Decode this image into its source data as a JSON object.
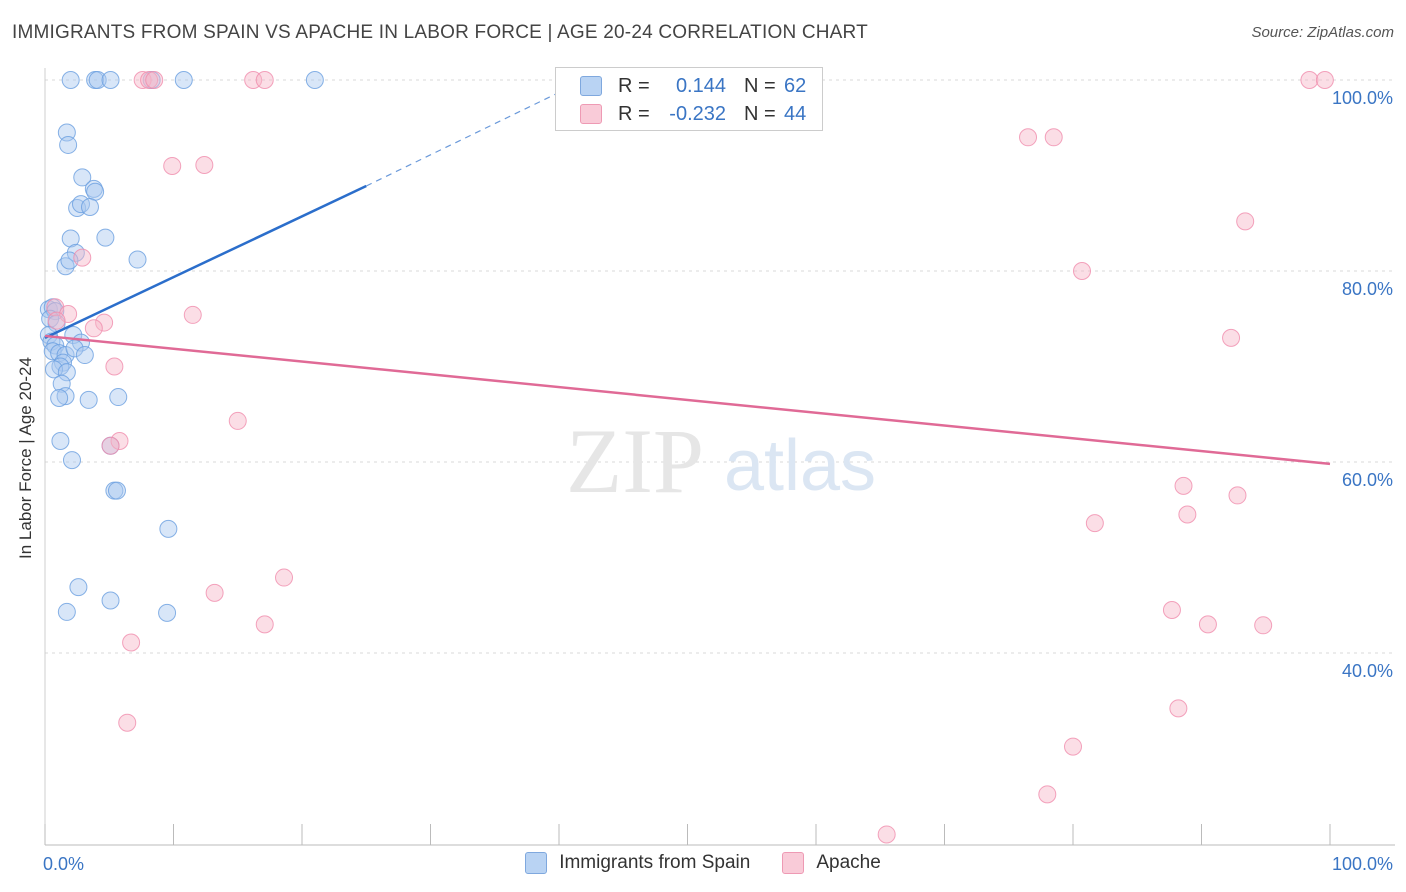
{
  "title": "IMMIGRANTS FROM SPAIN VS APACHE IN LABOR FORCE | AGE 20-24 CORRELATION CHART",
  "source": "Source: ZipAtlas.com",
  "watermark": {
    "zip": "ZIP",
    "atlas": "atlas"
  },
  "legend": {
    "rows": [
      {
        "r_label": "R =",
        "r_value": "0.144",
        "n_label": "N =",
        "n_value": "62",
        "color": "#a8c8f0"
      },
      {
        "r_label": "R =",
        "r_value": "-0.232",
        "n_label": "N =",
        "n_value": "44",
        "color": "#f7b6c8"
      }
    ]
  },
  "bottom_legend": [
    {
      "label": "Immigrants from Spain",
      "color": "#a8c8f0"
    },
    {
      "label": "Apache",
      "color": "#f7b6c8"
    }
  ],
  "chart_data": {
    "type": "scatter",
    "title": "IMMIGRANTS FROM SPAIN VS APACHE IN LABOR FORCE | AGE 20-24 CORRELATION CHART",
    "xlabel": "",
    "ylabel": "In Labor Force | Age 20-24",
    "xlim": [
      0,
      100
    ],
    "ylim": [
      20,
      102
    ],
    "x_tick_labels": [
      "0.0%",
      "100.0%"
    ],
    "y_ticks": [
      40,
      60,
      80,
      100
    ],
    "y_tick_labels": [
      "40.0%",
      "60.0%",
      "80.0%",
      "100.0%"
    ],
    "grid": true,
    "legend_position": "top-center",
    "series": [
      {
        "name": "Immigrants from Spain",
        "color": "#6a9fe0",
        "fill": "#a8c8f0",
        "points": [
          [
            2.0,
            100
          ],
          [
            3.9,
            100
          ],
          [
            4.1,
            100
          ],
          [
            5.1,
            100
          ],
          [
            8.3,
            100
          ],
          [
            10.8,
            100
          ],
          [
            21.0,
            100
          ],
          [
            1.7,
            94.5
          ],
          [
            1.8,
            93.2
          ],
          [
            2.9,
            89.8
          ],
          [
            3.8,
            88.6
          ],
          [
            3.9,
            88.3
          ],
          [
            2.5,
            86.6
          ],
          [
            2.8,
            87.0
          ],
          [
            3.5,
            86.7
          ],
          [
            2.0,
            83.4
          ],
          [
            4.7,
            83.5
          ],
          [
            2.4,
            81.9
          ],
          [
            1.6,
            80.5
          ],
          [
            1.9,
            81.1
          ],
          [
            7.2,
            81.2
          ],
          [
            0.3,
            76.0
          ],
          [
            0.6,
            76.2
          ],
          [
            0.8,
            75.8
          ],
          [
            0.4,
            75.0
          ],
          [
            0.9,
            74.5
          ],
          [
            0.3,
            73.3
          ],
          [
            0.5,
            72.6
          ],
          [
            0.8,
            72.2
          ],
          [
            2.2,
            73.3
          ],
          [
            2.8,
            72.5
          ],
          [
            0.6,
            71.6
          ],
          [
            1.1,
            71.4
          ],
          [
            1.6,
            71.2
          ],
          [
            2.3,
            71.9
          ],
          [
            3.1,
            71.2
          ],
          [
            1.4,
            70.4
          ],
          [
            1.2,
            70.0
          ],
          [
            0.7,
            69.7
          ],
          [
            1.7,
            69.4
          ],
          [
            1.3,
            68.2
          ],
          [
            1.6,
            66.9
          ],
          [
            1.1,
            66.7
          ],
          [
            3.4,
            66.5
          ],
          [
            5.7,
            66.8
          ],
          [
            1.2,
            62.2
          ],
          [
            2.1,
            60.2
          ],
          [
            5.1,
            61.7
          ],
          [
            5.4,
            57.0
          ],
          [
            5.6,
            57.0
          ],
          [
            9.6,
            53.0
          ],
          [
            2.6,
            46.9
          ],
          [
            5.1,
            45.5
          ],
          [
            1.7,
            44.3
          ],
          [
            9.5,
            44.2
          ]
        ]
      },
      {
        "name": "Apache",
        "color": "#f08cac",
        "fill": "#f7b6c8",
        "points": [
          [
            7.6,
            100
          ],
          [
            8.1,
            100
          ],
          [
            8.5,
            100
          ],
          [
            16.2,
            100
          ],
          [
            17.1,
            100
          ],
          [
            98.4,
            100
          ],
          [
            99.6,
            100
          ],
          [
            9.9,
            91.0
          ],
          [
            12.4,
            91.1
          ],
          [
            76.5,
            94.0
          ],
          [
            78.5,
            94.0
          ],
          [
            93.4,
            85.2
          ],
          [
            2.9,
            81.4
          ],
          [
            80.7,
            80.0
          ],
          [
            0.8,
            76.2
          ],
          [
            1.8,
            75.5
          ],
          [
            11.5,
            75.4
          ],
          [
            4.6,
            74.6
          ],
          [
            3.8,
            74.0
          ],
          [
            0.9,
            74.8
          ],
          [
            92.3,
            73.0
          ],
          [
            5.4,
            70.0
          ],
          [
            15.0,
            64.3
          ],
          [
            5.8,
            62.2
          ],
          [
            5.1,
            61.7
          ],
          [
            88.6,
            57.5
          ],
          [
            92.8,
            56.5
          ],
          [
            88.9,
            54.5
          ],
          [
            81.7,
            53.6
          ],
          [
            18.6,
            47.9
          ],
          [
            13.2,
            46.3
          ],
          [
            17.1,
            43.0
          ],
          [
            87.7,
            44.5
          ],
          [
            90.5,
            43.0
          ],
          [
            94.8,
            42.9
          ],
          [
            6.7,
            41.1
          ],
          [
            6.4,
            32.7
          ],
          [
            88.2,
            34.2
          ],
          [
            80.0,
            30.2
          ],
          [
            78.0,
            25.2
          ],
          [
            65.5,
            21.0
          ]
        ]
      }
    ],
    "trend_lines": [
      {
        "series": "Immigrants from Spain",
        "x_start": 0.0,
        "y_start": 73.0,
        "x_solid_end": 25.0,
        "y_solid_end": 88.9,
        "x_dashed_end": 42.0,
        "y_dashed_end": 100.0,
        "color": "#2b6ecb"
      },
      {
        "series": "Apache",
        "x_start": 0.0,
        "y_start": 73.2,
        "x_end": 100.0,
        "y_end": 59.8,
        "color": "#e06a96"
      }
    ]
  }
}
